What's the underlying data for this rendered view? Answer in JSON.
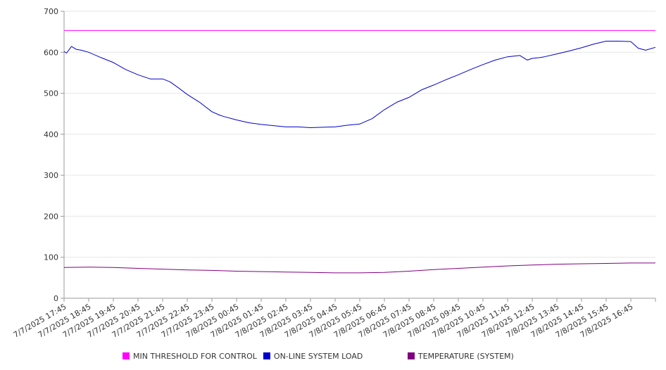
{
  "chart_data": {
    "type": "line",
    "title": "",
    "xlabel": "",
    "ylabel": "",
    "ylim": [
      0,
      700
    ],
    "yticks": [
      0,
      100,
      200,
      300,
      400,
      500,
      600,
      700
    ],
    "grid": true,
    "legend_position": "bottom",
    "categories": [
      "7/7/2025 17:45",
      "7/7/2025 18:45",
      "7/7/2025 19:45",
      "7/7/2025 20:45",
      "7/7/2025 21:45",
      "7/7/2025 22:45",
      "7/7/2025 23:45",
      "7/8/2025 00:45",
      "7/8/2025 01:45",
      "7/8/2025 02:45",
      "7/8/2025 03:45",
      "7/8/2025 04:45",
      "7/8/2025 05:45",
      "7/8/2025 06:45",
      "7/8/2025 07:45",
      "7/8/2025 08:45",
      "7/8/2025 09:45",
      "7/8/2025 10:45",
      "7/8/2025 11:45",
      "7/8/2025 12:45",
      "7/8/2025 13:45",
      "7/8/2025 14:45",
      "7/8/2025 15:45",
      "7/8/2025 16:45"
    ],
    "series": [
      {
        "name": "MIN THRESHOLD FOR CONTROL",
        "color": "#ff00ff",
        "x": [
          0,
          24
        ],
        "values": [
          653,
          653
        ]
      },
      {
        "name": "ON-LINE SYSTEM LOAD",
        "color": "#0000cc",
        "x": [
          0,
          0.1,
          0.3,
          0.5,
          0.7,
          1,
          1.5,
          2,
          2.5,
          3,
          3.5,
          4,
          4.3,
          4.6,
          5,
          5.5,
          6,
          6.3,
          6.5,
          7,
          7.5,
          8,
          8.5,
          9,
          9.5,
          10,
          10.5,
          11,
          11.5,
          12,
          12.5,
          13,
          13.5,
          14,
          14.5,
          15,
          15.5,
          16,
          16.5,
          17,
          17.5,
          18,
          18.5,
          18.8,
          19,
          19.3,
          19.5,
          20,
          20.5,
          21,
          21.5,
          22,
          22.5,
          23,
          23.3,
          23.6,
          24
        ],
        "values": [
          602,
          598,
          614,
          607,
          605,
          600,
          587,
          575,
          558,
          545,
          535,
          535,
          528,
          515,
          497,
          478,
          455,
          447,
          443,
          435,
          428,
          424,
          421,
          418,
          418,
          416,
          417,
          418,
          422,
          425,
          438,
          460,
          478,
          490,
          508,
          520,
          533,
          545,
          558,
          570,
          581,
          589,
          592,
          581,
          585,
          587,
          589,
          596,
          603,
          611,
          620,
          627,
          627,
          626,
          610,
          605,
          612
        ]
      },
      {
        "name": "TEMPERATURE (SYSTEM)",
        "color": "#800080",
        "x": [
          0,
          1,
          2,
          3,
          4,
          5,
          6,
          7,
          8,
          9,
          10,
          11,
          12,
          13,
          14,
          15,
          16,
          17,
          18,
          19,
          20,
          21,
          22,
          23,
          24
        ],
        "values": [
          75,
          76,
          75,
          73,
          71,
          69,
          68,
          66,
          65,
          64,
          63,
          62,
          62,
          63,
          66,
          70,
          73,
          76,
          79,
          81,
          83,
          84,
          85,
          86,
          86
        ]
      }
    ]
  }
}
